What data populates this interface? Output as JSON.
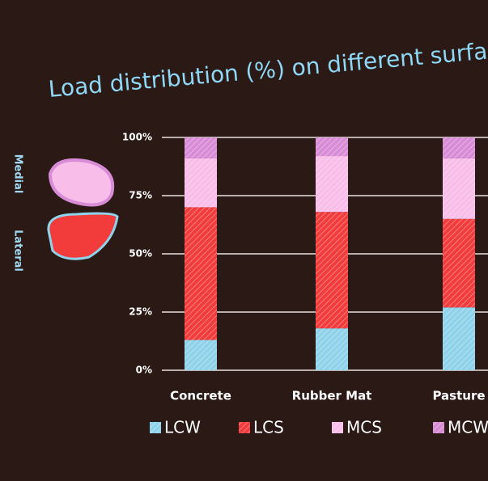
{
  "chart_data": {
    "type": "stacked_bar",
    "title": "Load distribution (%) on different surfaces",
    "annotations": [
      "Medial",
      "Lateral"
    ],
    "categories": [
      "Concrete",
      "Rubber Mat",
      "Pasture"
    ],
    "series": [
      {
        "name": "LCW",
        "color": "#8fd3ea",
        "values": [
          13,
          18,
          27
        ]
      },
      {
        "name": "LCS",
        "color": "#f23b3b",
        "values": [
          57,
          50,
          38
        ]
      },
      {
        "name": "MCS",
        "color": "#f8bde9",
        "values": [
          21,
          24,
          26
        ]
      },
      {
        "name": "MCW",
        "color": "#d88cd6",
        "values": [
          9,
          8,
          9
        ]
      }
    ],
    "ylim": [
      0,
      100
    ],
    "yticks": [
      {
        "value": 0,
        "label": "0%"
      },
      {
        "value": 25,
        "label": "25%"
      },
      {
        "value": 50,
        "label": "50%"
      },
      {
        "value": 75,
        "label": "75%"
      },
      {
        "value": 100,
        "label": "100%"
      }
    ],
    "grid": true
  }
}
